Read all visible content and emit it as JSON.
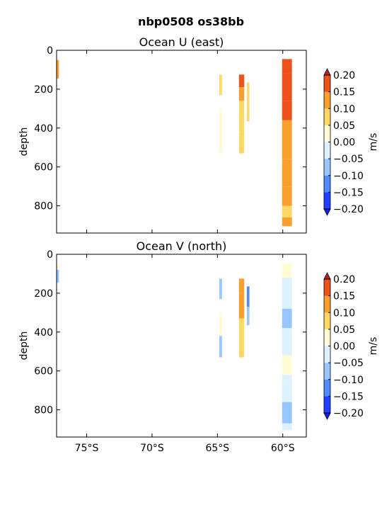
{
  "figure": {
    "title": "nbp0508 os38bb"
  },
  "colormap": {
    "levels": [
      -0.2,
      -0.15,
      -0.1,
      -0.05,
      0.0,
      0.05,
      0.1,
      0.15,
      0.2
    ],
    "colors": [
      "#2140ff",
      "#4c8cff",
      "#98c6ff",
      "#dff2ff",
      "#fffcd6",
      "#ffd866",
      "#fb9f2c",
      "#ee5119"
    ],
    "under_color": "#1a1aff",
    "over_color": "#bb1f1f"
  },
  "chart_data": [
    {
      "type": "heatmap",
      "title": "Ocean U (east)",
      "xlabel": "",
      "ylabel": "depth",
      "xlim": [
        -77.3,
        -58.2
      ],
      "ylim": [
        940,
        0
      ],
      "xticks": [
        -75,
        -70,
        -65,
        -60
      ],
      "xticklabels": [],
      "yticks": [
        0,
        200,
        400,
        600,
        800
      ],
      "yticklabels": [
        "0",
        "200",
        "400",
        "600",
        "800"
      ],
      "colorbar_label": "m/s",
      "colorbar_ticks": [
        "0.20",
        "0.15",
        "0.10",
        "0.05",
        "0.00",
        "−0.05",
        "−0.10",
        "−0.15",
        "−0.20"
      ],
      "profiles": [
        {
          "x0": -77.28,
          "x1": -77.12,
          "cells": [
            {
              "d0": 50,
              "d1": 145,
              "v": 0.12
            }
          ]
        },
        {
          "x0": -64.85,
          "x1": -64.65,
          "cells": [
            {
              "d0": 125,
              "d1": 230,
              "v": 0.06
            },
            {
              "d0": 300,
              "d1": 530,
              "v": 0.04
            }
          ]
        },
        {
          "x0": -63.35,
          "x1": -62.95,
          "cells": [
            {
              "d0": 125,
              "d1": 190,
              "v": 0.17
            },
            {
              "d0": 190,
              "d1": 260,
              "v": 0.12
            },
            {
              "d0": 260,
              "d1": 420,
              "v": 0.09
            },
            {
              "d0": 420,
              "d1": 530,
              "v": 0.07
            }
          ]
        },
        {
          "x0": -62.75,
          "x1": -62.55,
          "cells": [
            {
              "d0": 165,
              "d1": 270,
              "v": 0.09
            },
            {
              "d0": 270,
              "d1": 365,
              "v": 0.06
            }
          ]
        },
        {
          "x0": -60.05,
          "x1": -59.3,
          "cells": [
            {
              "d0": 45,
              "d1": 120,
              "v": 0.18
            },
            {
              "d0": 120,
              "d1": 260,
              "v": 0.15
            },
            {
              "d0": 260,
              "d1": 360,
              "v": 0.16
            },
            {
              "d0": 360,
              "d1": 560,
              "v": 0.13
            },
            {
              "d0": 560,
              "d1": 700,
              "v": 0.12
            },
            {
              "d0": 700,
              "d1": 800,
              "v": 0.11
            },
            {
              "d0": 800,
              "d1": 860,
              "v": 0.08
            },
            {
              "d0": 860,
              "d1": 905,
              "v": 0.13
            }
          ]
        }
      ]
    },
    {
      "type": "heatmap",
      "title": "Ocean V (north)",
      "xlabel": "",
      "ylabel": "depth",
      "xlim": [
        -77.3,
        -58.2
      ],
      "ylim": [
        940,
        0
      ],
      "xticks": [
        -75,
        -70,
        -65,
        -60
      ],
      "xticklabels": [
        "75°S",
        "70°S",
        "65°S",
        "60°S"
      ],
      "yticks": [
        0,
        200,
        400,
        600,
        800
      ],
      "yticklabels": [
        "0",
        "200",
        "400",
        "600",
        "800"
      ],
      "colorbar_label": "m/s",
      "colorbar_ticks": [
        "0.20",
        "0.15",
        "0.10",
        "0.05",
        "0.00",
        "−0.05",
        "−0.10",
        "−0.15",
        "−0.20"
      ],
      "profiles": [
        {
          "x0": -77.28,
          "x1": -77.12,
          "cells": [
            {
              "d0": 50,
              "d1": 80,
              "v": 0.03
            },
            {
              "d0": 80,
              "d1": 145,
              "v": -0.07
            }
          ]
        },
        {
          "x0": -64.85,
          "x1": -64.65,
          "cells": [
            {
              "d0": 125,
              "d1": 230,
              "v": -0.08
            },
            {
              "d0": 300,
              "d1": 420,
              "v": 0.04
            },
            {
              "d0": 420,
              "d1": 530,
              "v": -0.06
            }
          ]
        },
        {
          "x0": -63.35,
          "x1": -62.95,
          "cells": [
            {
              "d0": 125,
              "d1": 200,
              "v": 0.12
            },
            {
              "d0": 200,
              "d1": 330,
              "v": 0.14
            },
            {
              "d0": 330,
              "d1": 430,
              "v": 0.09
            },
            {
              "d0": 430,
              "d1": 530,
              "v": 0.06
            }
          ]
        },
        {
          "x0": -62.75,
          "x1": -62.55,
          "cells": [
            {
              "d0": 165,
              "d1": 270,
              "v": -0.12
            },
            {
              "d0": 270,
              "d1": 365,
              "v": -0.06
            }
          ]
        },
        {
          "x0": -60.05,
          "x1": -59.3,
          "cells": [
            {
              "d0": 45,
              "d1": 120,
              "v": 0.02
            },
            {
              "d0": 120,
              "d1": 280,
              "v": -0.03
            },
            {
              "d0": 280,
              "d1": 380,
              "v": -0.06
            },
            {
              "d0": 380,
              "d1": 520,
              "v": -0.02
            },
            {
              "d0": 520,
              "d1": 620,
              "v": 0.02
            },
            {
              "d0": 620,
              "d1": 760,
              "v": -0.04
            },
            {
              "d0": 760,
              "d1": 870,
              "v": -0.08
            },
            {
              "d0": 870,
              "d1": 905,
              "v": -0.03
            }
          ]
        }
      ]
    }
  ]
}
